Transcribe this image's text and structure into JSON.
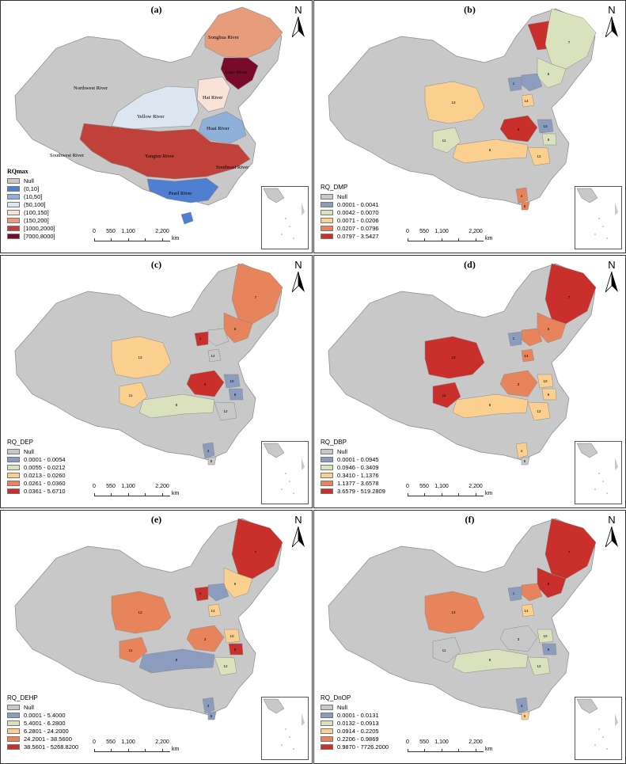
{
  "scale": {
    "ticks": [
      "0",
      "550",
      "1,100",
      "2,200"
    ],
    "unit": "km"
  },
  "north_letter": "N",
  "panels": {
    "a": {
      "label": "(a)",
      "legend_title": "RQmax",
      "legend": [
        {
          "label": "Null",
          "color": "#c8c8c8"
        },
        {
          "label": "(0,10]",
          "color": "#4f7fd0"
        },
        {
          "label": "(10,50]",
          "color": "#8fb0d8"
        },
        {
          "label": "(50,100]",
          "color": "#dbe6f1"
        },
        {
          "label": "(100,150]",
          "color": "#f9e2d8"
        },
        {
          "label": "(150,200]",
          "color": "#e79d7b"
        },
        {
          "label": "[1000,2000]",
          "color": "#c0403a"
        },
        {
          "label": "[7000,8000]",
          "color": "#7a0a2a"
        }
      ],
      "rivers": {
        "songhua": "Songhua River",
        "liao": "Liao River",
        "northwest": "Northwest River",
        "hai": "Hai River",
        "yellow": "Yellow River",
        "huai": "Huai River",
        "southwest": "Southwest River",
        "yangtze": "Yangtze River",
        "southeast": "Southeast River",
        "pearl": "Pearl River"
      }
    },
    "b": {
      "label": "(b)",
      "legend_title": "RQ_DMP",
      "legend": [
        {
          "label": "Null",
          "color": "#c8c8c8"
        },
        {
          "label": "0.0001 - 0.0041",
          "color": "#8b9cbf"
        },
        {
          "label": "0.0042 - 0.0070",
          "color": "#d9e2bd"
        },
        {
          "label": "0.0071 - 0.0206",
          "color": "#fbd08f"
        },
        {
          "label": "0.0207 - 0.0796",
          "color": "#e8845b"
        },
        {
          "label": "0.0797 - 3.5427",
          "color": "#c9302c"
        }
      ]
    },
    "c": {
      "label": "(c)",
      "legend_title": "RQ_DEP",
      "legend": [
        {
          "label": "Null",
          "color": "#c8c8c8"
        },
        {
          "label": "0.0001 - 0.0054",
          "color": "#8b9cbf"
        },
        {
          "label": "0.0055 - 0.0212",
          "color": "#d9e2bd"
        },
        {
          "label": "0.0213 - 0.0260",
          "color": "#fbd08f"
        },
        {
          "label": "0.0261 - 0.0360",
          "color": "#e8845b"
        },
        {
          "label": "0.0361 - 5.6710",
          "color": "#c9302c"
        }
      ]
    },
    "d": {
      "label": "(d)",
      "legend_title": "RQ_DBP",
      "legend": [
        {
          "label": "Null",
          "color": "#c8c8c8"
        },
        {
          "label": "0.0001 - 0.0945",
          "color": "#8b9cbf"
        },
        {
          "label": "0.0946 - 0.3409",
          "color": "#d9e2bd"
        },
        {
          "label": "0.3410 - 1.1376",
          "color": "#fbd08f"
        },
        {
          "label": "1.1377 - 3.6578",
          "color": "#e8845b"
        },
        {
          "label": "3.6579 - 519.2809",
          "color": "#c9302c"
        }
      ]
    },
    "e": {
      "label": "(e)",
      "legend_title": "RQ_DEHP",
      "legend": [
        {
          "label": "Null",
          "color": "#c8c8c8"
        },
        {
          "label": "0.0001 - 5.4000",
          "color": "#8b9cbf"
        },
        {
          "label": "5.4001 - 6.2800",
          "color": "#d9e2bd"
        },
        {
          "label": "6.2801 - 24.2000",
          "color": "#fbd08f"
        },
        {
          "label": "24.2001 - 38.5600",
          "color": "#e8845b"
        },
        {
          "label": "38.5601 - 5268.8200",
          "color": "#c9302c"
        }
      ]
    },
    "f": {
      "label": "(f)",
      "legend_title": "RQ_DnOP",
      "legend": [
        {
          "label": "Null",
          "color": "#c8c8c8"
        },
        {
          "label": "0.0001 - 0.0131",
          "color": "#8b9cbf"
        },
        {
          "label": "0.0132 - 0.0913",
          "color": "#d9e2bd"
        },
        {
          "label": "0.0914 - 0.2205",
          "color": "#fbd08f"
        },
        {
          "label": "0.2206 - 0.9869",
          "color": "#e8845b"
        },
        {
          "label": "0.9870 - 7726.2000",
          "color": "#c9302c"
        }
      ]
    }
  },
  "region_numbers": {
    "r1": "1",
    "r3": "3",
    "r4": "4",
    "r5": "5",
    "r6": "6",
    "r7": "7",
    "r8": "8",
    "r9": "9",
    "r10": "10",
    "r11": "11",
    "r12": "12",
    "r13": "13",
    "r14": "14"
  }
}
